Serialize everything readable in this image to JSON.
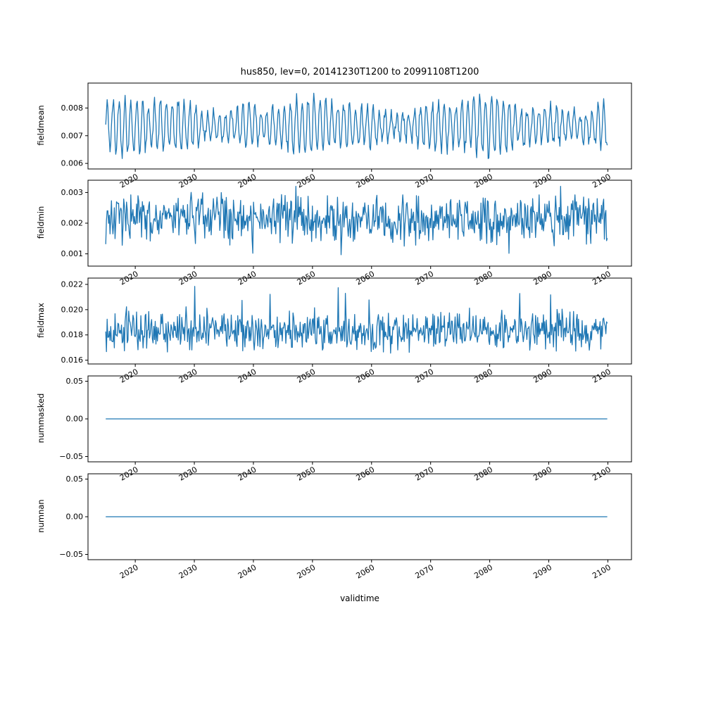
{
  "figure": {
    "title": "hus850, lev=0, 20141230T1200 to 20991108T1200",
    "xlabel": "validtime",
    "background": "#ffffff",
    "line_color": "#1f77b4",
    "xlim": [
      2012.0,
      2104.0
    ],
    "x_data_range": [
      2015.0,
      2099.9
    ],
    "xticks": [
      2020,
      2030,
      2040,
      2050,
      2060,
      2070,
      2080,
      2090,
      2100
    ],
    "xtick_labels": [
      "2020",
      "2030",
      "2040",
      "2050",
      "2060",
      "2070",
      "2080",
      "2090",
      "2100"
    ]
  },
  "chart_data": [
    {
      "type": "line",
      "name": "fieldmean",
      "ylabel": "fieldmean",
      "grid": false,
      "legend": false,
      "ylim": [
        0.0058,
        0.0089
      ],
      "yticks": [
        0.006,
        0.007,
        0.008
      ],
      "ytick_labels": [
        "0.006",
        "0.007",
        "0.008"
      ],
      "value_range": [
        0.0059,
        0.0088
      ],
      "series": [
        {
          "name": "fieldmean",
          "color": "#1f77b4",
          "gen": {
            "kind": "seasonal",
            "n": 700,
            "seed": 42,
            "base": 0.00735,
            "seasonal_amp": 0.00075,
            "period_points": 8.24,
            "noise_amp": 0.00025,
            "min": 0.0059,
            "max": 0.0088
          }
        }
      ]
    },
    {
      "type": "line",
      "name": "fieldmin",
      "ylabel": "fieldmin",
      "grid": false,
      "legend": false,
      "ylim": [
        0.0006,
        0.0034
      ],
      "yticks": [
        0.001,
        0.002,
        0.003
      ],
      "ytick_labels": [
        "0.001",
        "0.002",
        "0.003"
      ],
      "value_range": [
        0.0007,
        0.0032
      ],
      "series": [
        {
          "name": "fieldmin",
          "color": "#1f77b4",
          "gen": {
            "kind": "noise",
            "n": 700,
            "seed": 7,
            "base": 0.00215,
            "noise_amp": 0.00045,
            "spike_down_prob": 0.04,
            "spike_down_amp": 0.0011,
            "spike_up_prob": 0.03,
            "spike_up_amp": 0.0009,
            "min": 0.0007,
            "max": 0.0032
          }
        }
      ]
    },
    {
      "type": "line",
      "name": "fieldmax",
      "ylabel": "fieldmax",
      "grid": false,
      "legend": false,
      "ylim": [
        0.0157,
        0.0225
      ],
      "yticks": [
        0.016,
        0.018,
        0.02,
        0.022
      ],
      "ytick_labels": [
        "0.016",
        "0.018",
        "0.020",
        "0.022"
      ],
      "value_range": [
        0.0161,
        0.0221
      ],
      "series": [
        {
          "name": "fieldmax",
          "color": "#1f77b4",
          "gen": {
            "kind": "noise",
            "n": 700,
            "seed": 13,
            "base": 0.0183,
            "noise_amp": 0.0009,
            "spike_up_prob": 0.05,
            "spike_up_amp": 0.0028,
            "spike_down_prob": 0.02,
            "spike_down_amp": 0.0012,
            "min": 0.0161,
            "max": 0.0221
          }
        }
      ]
    },
    {
      "type": "line",
      "name": "nummasked",
      "ylabel": "nummasked",
      "grid": false,
      "legend": false,
      "ylim": [
        -0.057,
        0.057
      ],
      "yticks": [
        -0.05,
        0.0,
        0.05
      ],
      "ytick_labels": [
        "−0.05",
        "0.00",
        "0.05"
      ],
      "value_range": [
        0.0,
        0.0
      ],
      "series": [
        {
          "name": "nummasked",
          "color": "#1f77b4",
          "gen": {
            "kind": "constant",
            "n": 2,
            "seed": 1,
            "value": 0.0
          }
        }
      ]
    },
    {
      "type": "line",
      "name": "numnan",
      "ylabel": "numnan",
      "grid": false,
      "legend": false,
      "ylim": [
        -0.057,
        0.057
      ],
      "yticks": [
        -0.05,
        0.0,
        0.05
      ],
      "ytick_labels": [
        "−0.05",
        "0.00",
        "0.05"
      ],
      "value_range": [
        0.0,
        0.0
      ],
      "series": [
        {
          "name": "numnan",
          "color": "#1f77b4",
          "gen": {
            "kind": "constant",
            "n": 2,
            "seed": 1,
            "value": 0.0
          }
        }
      ]
    }
  ]
}
